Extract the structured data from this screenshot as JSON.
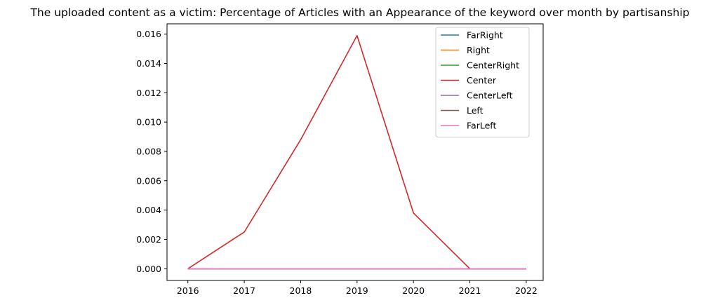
{
  "chart_data": {
    "type": "line",
    "title": "The uploaded content as a victim: Percentage of Articles with an Appearance of the keyword over month by partisanship",
    "xlabel": "",
    "ylabel": "",
    "x": [
      2016,
      2017,
      2018,
      2019,
      2020,
      2021,
      2022
    ],
    "xlim": [
      2015.63,
      2022.3
    ],
    "ylim": [
      -0.0008,
      0.0167
    ],
    "yticks": [
      0.0,
      0.002,
      0.004,
      0.006,
      0.008,
      0.01,
      0.012,
      0.014,
      0.016
    ],
    "ytick_labels": [
      "0.000",
      "0.002",
      "0.004",
      "0.006",
      "0.008",
      "0.010",
      "0.012",
      "0.014",
      "0.016"
    ],
    "xtick_labels": [
      "2016",
      "2017",
      "2018",
      "2019",
      "2020",
      "2021",
      "2022"
    ],
    "legend_position": "top-right",
    "grid": false,
    "series": [
      {
        "name": "FarRight",
        "color": "#1f77b4",
        "values": [
          0,
          0,
          0,
          0,
          0,
          0,
          0
        ]
      },
      {
        "name": "Right",
        "color": "#ff7f0e",
        "values": [
          0,
          0,
          0,
          0,
          0,
          0,
          0
        ]
      },
      {
        "name": "CenterRight",
        "color": "#2ca02c",
        "values": [
          0,
          0,
          0,
          0,
          0,
          0,
          0
        ]
      },
      {
        "name": "Center",
        "color": "#d62728",
        "values": [
          0,
          0.0025,
          0.0088,
          0.0159,
          0.0038,
          0,
          0
        ]
      },
      {
        "name": "CenterLeft",
        "color": "#9467bd",
        "values": [
          0,
          0,
          0,
          0,
          0,
          0,
          0
        ]
      },
      {
        "name": "Left",
        "color": "#8c564b",
        "values": [
          0,
          0,
          0,
          0,
          0,
          0,
          0
        ]
      },
      {
        "name": "FarLeft",
        "color": "#e377c2",
        "values": [
          0,
          0,
          0,
          0,
          0,
          0,
          0
        ]
      }
    ]
  }
}
